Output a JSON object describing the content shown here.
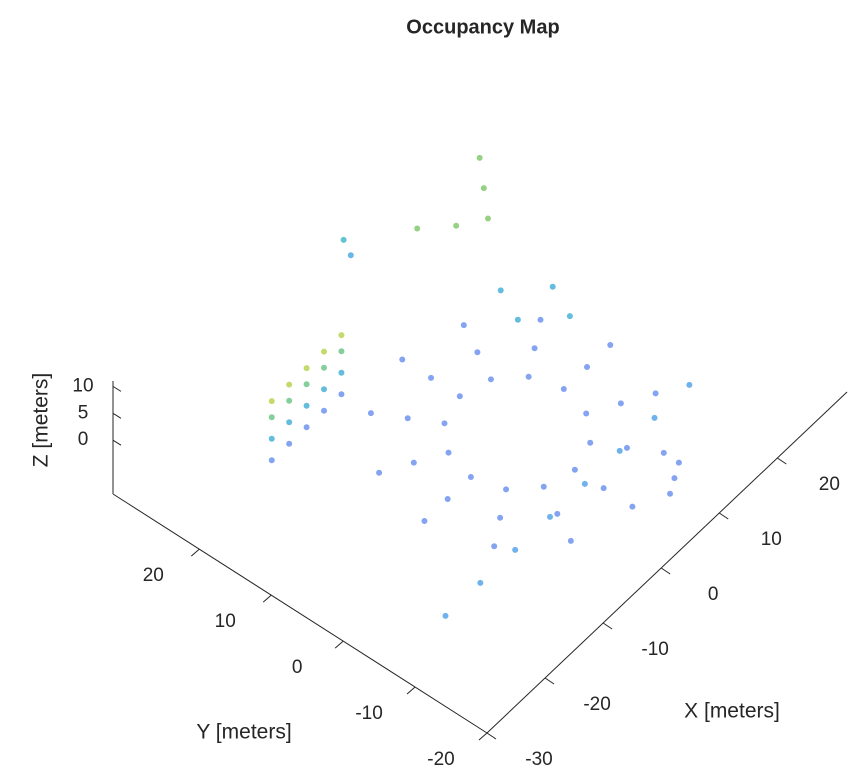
{
  "chart_data": {
    "type": "scatter3d",
    "title": "Occupancy Map",
    "xlabel": "X [meters]",
    "ylabel": "Y [meters]",
    "zlabel": "Z [meters]",
    "xlim": [
      -30,
      32
    ],
    "xticks": [
      -30,
      -20,
      -10,
      0,
      10,
      20
    ],
    "ylim": [
      -20,
      32
    ],
    "yticks": [
      -20,
      -10,
      0,
      10,
      20
    ],
    "zlim": [
      -10,
      11
    ],
    "zticks": [
      0,
      5,
      10
    ],
    "colormap": [
      "#8a7cf0",
      "#8a7cf0",
      "#7a8cf0",
      "#50a8e8",
      "#40c0c0",
      "#90cc60",
      "#f0e040"
    ],
    "x": [
      8,
      6.9,
      4,
      0,
      -4,
      -6.9,
      -8,
      -6.9,
      -4,
      0,
      4,
      6.9,
      12,
      10.4,
      6,
      0,
      -6,
      -10.4,
      -12,
      -10.4,
      -6,
      0,
      6,
      10.4,
      16,
      13.9,
      8,
      0,
      -8,
      -13.9,
      -16,
      -13.9,
      -8,
      0,
      8,
      13.9,
      -20,
      -17,
      -14,
      -11,
      -8,
      -20,
      -17,
      -14,
      -11,
      -8,
      -20,
      -17,
      -14,
      -11,
      -8,
      -20,
      -17,
      -14,
      -11,
      -8,
      -26,
      -20,
      -14,
      -8,
      -2,
      4,
      10,
      16,
      10,
      13,
      16,
      19,
      22,
      10,
      14,
      12,
      16,
      4,
      6,
      8,
      6,
      6
    ],
    "y": [
      0,
      4,
      6.9,
      8,
      6.9,
      4,
      0,
      -4,
      -6.9,
      -8,
      -6.9,
      -4,
      0,
      6,
      10.4,
      12,
      10.4,
      6,
      0,
      -6,
      -10.4,
      -12,
      -10.4,
      -6,
      0,
      8,
      13.9,
      16,
      13.9,
      8,
      0,
      -8,
      -13.9,
      -16,
      -13.9,
      -8,
      18,
      18,
      18,
      18,
      18,
      18,
      18,
      18,
      18,
      18,
      18,
      18,
      18,
      18,
      18,
      18,
      18,
      18,
      18,
      18,
      -11,
      -11,
      -11,
      -11,
      -11,
      -11,
      -11,
      -11,
      22,
      19,
      17,
      20,
      23,
      8,
      4,
      12,
      8,
      -18,
      -17,
      -16,
      29,
      28
    ],
    "z": [
      -2,
      -2,
      -2,
      -2,
      -2,
      -2,
      -2,
      -2,
      -2,
      -2,
      -2,
      -2,
      -2,
      -2,
      -2,
      -2,
      -2,
      -2,
      -2,
      -2,
      -2,
      -2,
      -2,
      -2,
      -2,
      -2,
      -2,
      -2,
      -2,
      -2,
      -2,
      -2,
      -2,
      -2,
      -2,
      -2,
      -2,
      -2,
      -2,
      -2,
      -2,
      2,
      2,
      2,
      2,
      2,
      6,
      6,
      6,
      6,
      6,
      9,
      9,
      9,
      9,
      9,
      0,
      0,
      0,
      0,
      0,
      0,
      0,
      0,
      7,
      7,
      7,
      7,
      7,
      2,
      2,
      2,
      2,
      -2,
      -2,
      -2,
      3,
      1
    ]
  }
}
